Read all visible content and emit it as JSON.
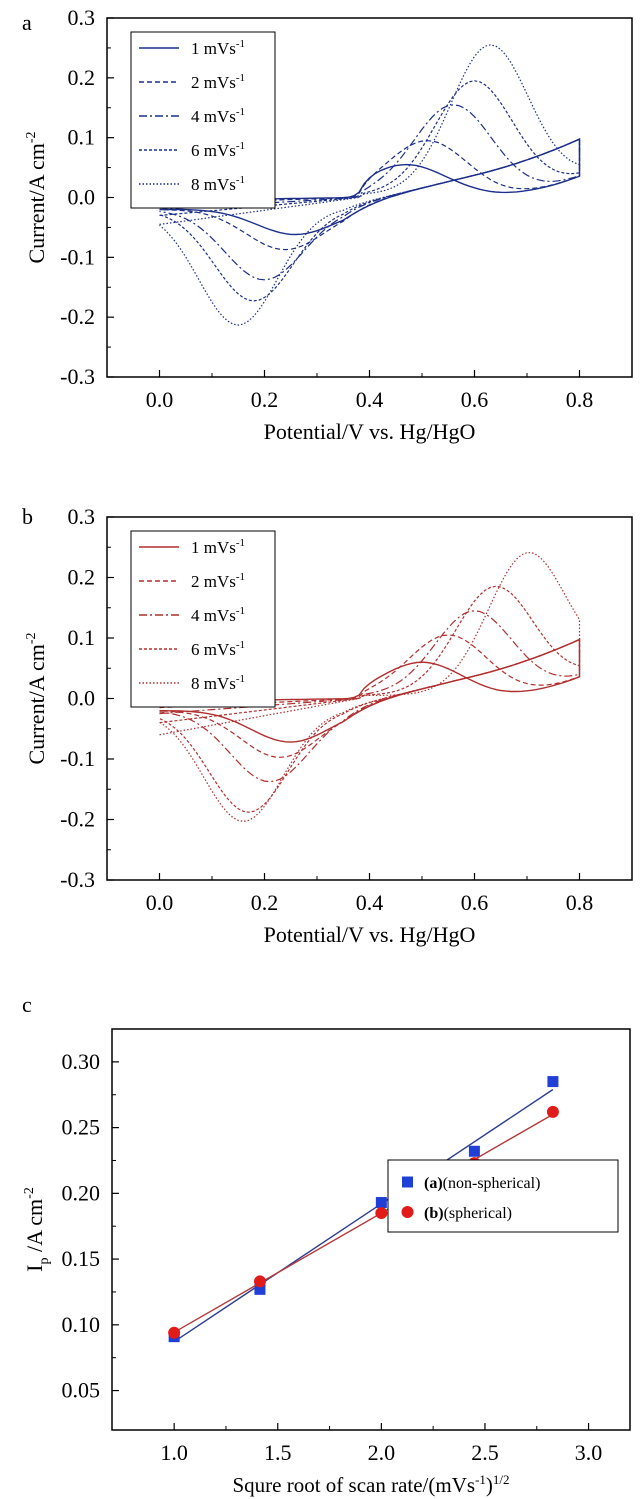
{
  "chart_data": [
    {
      "panel": "a",
      "type": "line",
      "xlabel": "Potential/V vs. Hg/HgO",
      "ylabel": "Current/A cm",
      "ylabel_sup": "-2",
      "xlim": [
        -0.1,
        0.9
      ],
      "ylim": [
        -0.3,
        0.3
      ],
      "xticks": [
        "0.0",
        "0.2",
        "0.4",
        "0.6",
        "0.8"
      ],
      "yticks": [
        "-0.3",
        "-0.2",
        "-0.1",
        "0.0",
        "0.1",
        "0.2",
        "0.3"
      ],
      "legend_position": "top-left",
      "color": "#1c2f8a",
      "series": [
        {
          "name": "1 mVs",
          "sup": "-1",
          "ipa": 0.09,
          "epa": 0.47,
          "ipc": -0.065,
          "epc": 0.26,
          "fwd0": -0.005
        },
        {
          "name": "2 mVs",
          "sup": "-1",
          "ipa": 0.13,
          "epa": 0.51,
          "ipc": -0.09,
          "epc": 0.24,
          "fwd0": -0.01
        },
        {
          "name": "4 mVs",
          "sup": "-1",
          "ipa": 0.19,
          "epa": 0.56,
          "ipc": -0.14,
          "epc": 0.2,
          "fwd0": -0.02
        },
        {
          "name": "6 mVs",
          "sup": "-1",
          "ipa": 0.23,
          "epa": 0.6,
          "ipc": -0.175,
          "epc": 0.18,
          "fwd0": -0.03
        },
        {
          "name": "8 mVs",
          "sup": "-1",
          "ipa": 0.29,
          "epa": 0.63,
          "ipc": -0.215,
          "epc": 0.15,
          "fwd0": -0.045
        }
      ]
    },
    {
      "panel": "b",
      "type": "line",
      "xlabel": "Potential/V vs. Hg/HgO",
      "ylabel": "Current/A cm",
      "ylabel_sup": "-2",
      "xlim": [
        -0.1,
        0.9
      ],
      "ylim": [
        -0.3,
        0.3
      ],
      "xticks": [
        "0.0",
        "0.2",
        "0.4",
        "0.6",
        "0.8"
      ],
      "yticks": [
        "-0.3",
        "-0.2",
        "-0.1",
        "0.0",
        "0.1",
        "0.2",
        "0.3"
      ],
      "legend_position": "top-left",
      "color": "#b0302f",
      "series": [
        {
          "name": "1 mVs",
          "sup": "-1",
          "ipa": 0.095,
          "epa": 0.5,
          "ipc": -0.075,
          "epc": 0.25,
          "fwd0": -0.005
        },
        {
          "name": "2 mVs",
          "sup": "-1",
          "ipa": 0.14,
          "epa": 0.55,
          "ipc": -0.1,
          "epc": 0.23,
          "fwd0": -0.015
        },
        {
          "name": "4 mVs",
          "sup": "-1",
          "ipa": 0.18,
          "epa": 0.6,
          "ipc": -0.14,
          "epc": 0.21,
          "fwd0": -0.025
        },
        {
          "name": "6 mVs",
          "sup": "-1",
          "ipa": 0.22,
          "epa": 0.64,
          "ipc": -0.19,
          "epc": 0.17,
          "fwd0": -0.04
        },
        {
          "name": "8 mVs",
          "sup": "-1",
          "ipa": 0.27,
          "epa": 0.7,
          "ipc": -0.205,
          "epc": 0.16,
          "fwd0": -0.06
        }
      ]
    },
    {
      "panel": "c",
      "type": "scatter",
      "xlabel": "Squre root of scan rate/(mVs",
      "xlabel_sup1": "-1",
      "xlabel_tail": ")",
      "xlabel_sup2": "1/2",
      "ylabel": "I",
      "ylabel_sub": "p",
      "ylabel_tail": " /A cm",
      "ylabel_sup": "-2",
      "xlim": [
        0.7,
        3.2
      ],
      "ylim": [
        0.02,
        0.325
      ],
      "xticks": [
        "1.0",
        "1.5",
        "2.0",
        "2.5",
        "3.0"
      ],
      "yticks": [
        "0.05",
        "0.10",
        "0.15",
        "0.20",
        "0.25",
        "0.30"
      ],
      "legend_position": "right",
      "series": [
        {
          "name_bold": "(a)",
          "name_rest": "(non-spherical)",
          "marker": "square",
          "color": "#1f3fd6",
          "line_color": "#2b3d8f",
          "x": [
            1.0,
            1.414,
            2.0,
            2.449,
            2.828
          ],
          "y": [
            0.091,
            0.127,
            0.193,
            0.232,
            0.285
          ]
        },
        {
          "name_bold": "(b)",
          "name_rest": "(spherical)",
          "marker": "circle",
          "color": "#e11a1a",
          "line_color": "#b43a3a",
          "x": [
            1.0,
            1.414,
            2.0,
            2.449,
            2.828
          ],
          "y": [
            0.094,
            0.133,
            0.185,
            0.223,
            0.262
          ]
        }
      ]
    }
  ]
}
